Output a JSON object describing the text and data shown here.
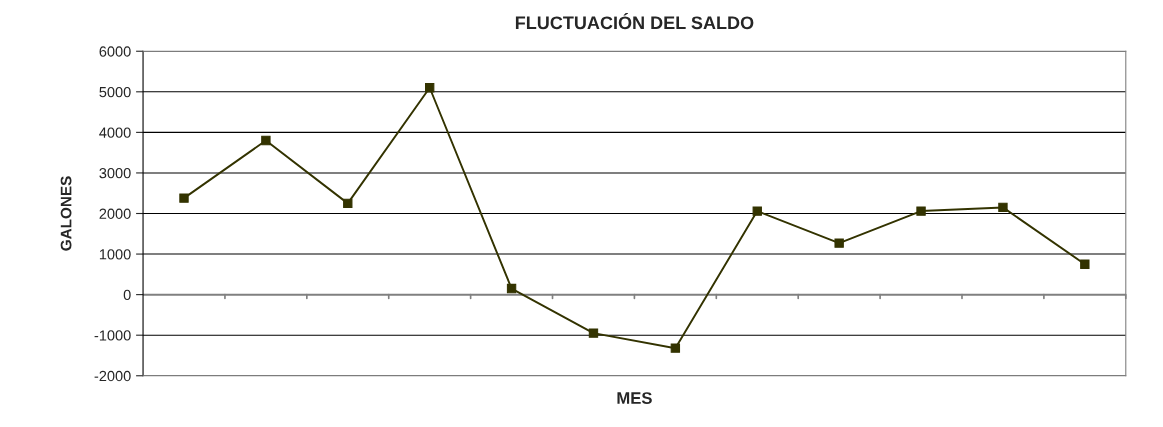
{
  "chart_data": {
    "type": "line",
    "title": "FLUCTUACIÓN DEL SALDO",
    "xlabel": "MES",
    "ylabel": "GALONES",
    "categories": [
      null,
      null,
      null,
      null,
      null,
      null,
      null,
      null,
      null,
      null,
      null,
      null
    ],
    "series": [
      {
        "color": "#333300",
        "values": [
          2380,
          3800,
          2250,
          5100,
          150,
          -950,
          -1320,
          2060,
          1270,
          2060,
          2150,
          750
        ]
      }
    ],
    "ylim": [
      -2000,
      6000
    ],
    "yticks": [
      -2000,
      -1000,
      0,
      1000,
      2000,
      3000,
      4000,
      5000,
      6000
    ],
    "grid": "y",
    "marker": "square",
    "line_style": "solid"
  }
}
